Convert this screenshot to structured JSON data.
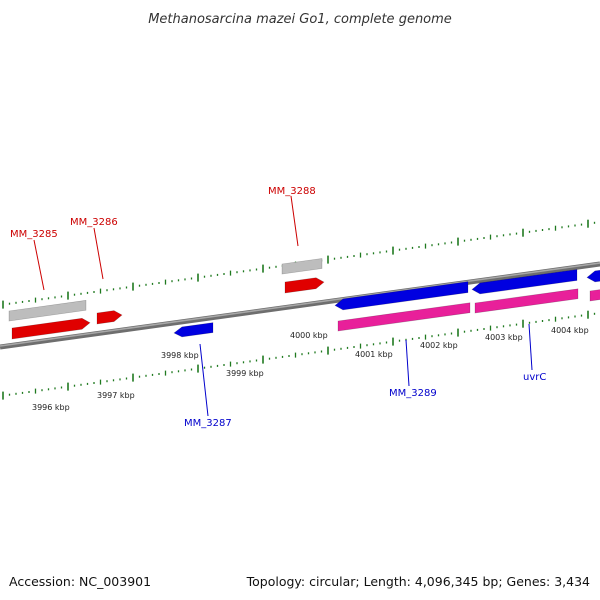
{
  "title": "Methanosarcina mazei Go1, complete genome",
  "footer": {
    "accession": "Accession: NC_003901",
    "summary": "Topology: circular; Length: 4,096,345 bp; Genes: 3,434"
  },
  "colors": {
    "backbone": "#8a8a8a",
    "tick": "#1f7a1f",
    "forward_gene": "#e00000",
    "reverse_gene": "#0000e0",
    "forward_feature": "#bdbdbd",
    "reverse_feature": "#e8209a",
    "forward_label": "#cc0000",
    "reverse_label": "#0000cc"
  },
  "map": {
    "scale_labels": [
      "3996 kbp",
      "3997 kbp",
      "3998 kbp",
      "3999 kbp",
      "4000 kbp",
      "4001 kbp",
      "4002 kbp",
      "4003 kbp",
      "4004 kbp"
    ],
    "gene_labels": [
      {
        "text": "MM_3285",
        "strand": "forward"
      },
      {
        "text": "MM_3286",
        "strand": "forward"
      },
      {
        "text": "MM_3288",
        "strand": "forward"
      },
      {
        "text": "MM_3287",
        "strand": "reverse"
      },
      {
        "text": "MM_3289",
        "strand": "reverse"
      },
      {
        "text": "uvrC",
        "strand": "reverse"
      }
    ]
  }
}
